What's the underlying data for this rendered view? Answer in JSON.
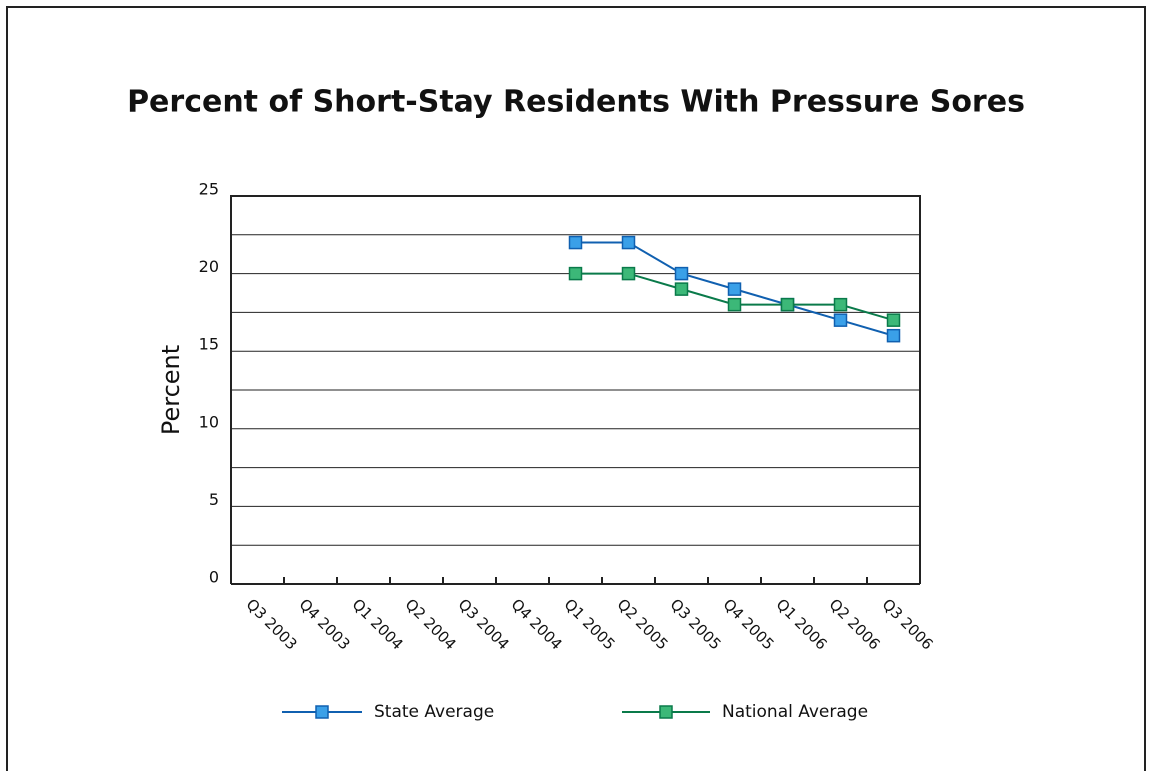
{
  "chart_data": {
    "type": "line",
    "title": "Percent of Short-Stay Residents With Pressure Sores",
    "y_label": "Percent",
    "categories": [
      "Q3 2003",
      "Q4 2003",
      "Q1 2004",
      "Q2 2004",
      "Q3 2004",
      "Q4 2004",
      "Q1 2005",
      "Q2 2005",
      "Q3 2005",
      "Q4 2005",
      "Q1 2006",
      "Q2 2006",
      "Q3 2006"
    ],
    "series": [
      {
        "name": "State Average",
        "color": "#1060b0",
        "marker_color": "#3aa0e8",
        "values": [
          null,
          null,
          null,
          null,
          null,
          null,
          22,
          22,
          20,
          19,
          18,
          17,
          16
        ]
      },
      {
        "name": "National Average",
        "color": "#0a7a4a",
        "marker_color": "#3cb878",
        "values": [
          null,
          null,
          null,
          null,
          null,
          null,
          20,
          20,
          19,
          18,
          18,
          18,
          17
        ]
      }
    ],
    "ylim": [
      0,
      25
    ],
    "yticks": [
      0,
      5,
      10,
      15,
      20,
      25
    ],
    "minor_yticks": [
      2.5,
      7.5,
      12.5,
      17.5,
      22.5
    ],
    "grid": true
  }
}
